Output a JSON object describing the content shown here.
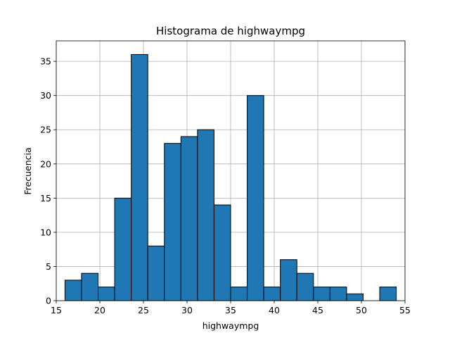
{
  "chart_data": {
    "type": "bar",
    "title": "Histograma de highwaympg",
    "xlabel": "highwaympg",
    "ylabel": "Frecuencia",
    "xlim": [
      15,
      55
    ],
    "ylim": [
      0,
      38
    ],
    "xticks": [
      15,
      20,
      25,
      30,
      35,
      40,
      45,
      50,
      55
    ],
    "yticks": [
      0,
      5,
      10,
      15,
      20,
      25,
      30,
      35
    ],
    "grid": true,
    "bar_color": "#1f77b4",
    "edge_color": "#000000",
    "bins": [
      {
        "start": 16.0,
        "end": 17.9,
        "count": 3
      },
      {
        "start": 17.9,
        "end": 19.8,
        "count": 4
      },
      {
        "start": 19.8,
        "end": 21.7,
        "count": 2
      },
      {
        "start": 21.7,
        "end": 23.6,
        "count": 15
      },
      {
        "start": 23.6,
        "end": 25.5,
        "count": 36
      },
      {
        "start": 25.5,
        "end": 27.4,
        "count": 8
      },
      {
        "start": 27.4,
        "end": 29.3,
        "count": 23
      },
      {
        "start": 29.3,
        "end": 31.2,
        "count": 24
      },
      {
        "start": 31.2,
        "end": 33.1,
        "count": 25
      },
      {
        "start": 33.1,
        "end": 35.0,
        "count": 14
      },
      {
        "start": 35.0,
        "end": 36.9,
        "count": 2
      },
      {
        "start": 36.9,
        "end": 38.8,
        "count": 30
      },
      {
        "start": 38.8,
        "end": 40.7,
        "count": 2
      },
      {
        "start": 40.7,
        "end": 42.6,
        "count": 6
      },
      {
        "start": 42.6,
        "end": 44.5,
        "count": 4
      },
      {
        "start": 44.5,
        "end": 46.4,
        "count": 2
      },
      {
        "start": 46.4,
        "end": 48.3,
        "count": 2
      },
      {
        "start": 48.3,
        "end": 50.2,
        "count": 1
      },
      {
        "start": 50.2,
        "end": 52.1,
        "count": 0
      },
      {
        "start": 52.1,
        "end": 54.0,
        "count": 2
      }
    ]
  }
}
